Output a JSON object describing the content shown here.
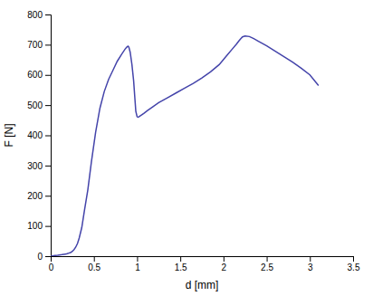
{
  "chart_data": {
    "type": "line",
    "xlabel": "d [mm]",
    "ylabel": "F [N]",
    "xlim": [
      0,
      3.5
    ],
    "ylim": [
      0,
      800
    ],
    "xticks": [
      0,
      0.5,
      1,
      1.5,
      2,
      2.5,
      3,
      3.5
    ],
    "yticks": [
      0,
      100,
      200,
      300,
      400,
      500,
      600,
      700,
      800
    ],
    "grid": false,
    "color": "#4444aa",
    "x": [
      0.0,
      0.02,
      0.05,
      0.08,
      0.1,
      0.13,
      0.15,
      0.17,
      0.19,
      0.21,
      0.23,
      0.25,
      0.27,
      0.29,
      0.31,
      0.33,
      0.36,
      0.39,
      0.43,
      0.47,
      0.52,
      0.57,
      0.62,
      0.67,
      0.72,
      0.77,
      0.82,
      0.86,
      0.88,
      0.895,
      0.905,
      0.92,
      0.94,
      0.96,
      0.975,
      0.985,
      1.0,
      1.01,
      1.02,
      1.03,
      1.05,
      1.08,
      1.12,
      1.18,
      1.25,
      1.35,
      1.45,
      1.55,
      1.65,
      1.75,
      1.85,
      1.95,
      2.0,
      2.05,
      2.1,
      2.15,
      2.18,
      2.2,
      2.22,
      2.25,
      2.3,
      2.35,
      2.4,
      2.5,
      2.6,
      2.7,
      2.8,
      2.9,
      3.0,
      3.1
    ],
    "values": [
      0,
      1,
      2,
      3,
      4,
      5,
      6,
      7,
      8,
      10,
      12,
      16,
      22,
      30,
      42,
      60,
      95,
      150,
      220,
      310,
      410,
      490,
      545,
      585,
      615,
      645,
      668,
      685,
      692,
      695,
      692,
      675,
      635,
      580,
      520,
      480,
      462,
      460,
      461,
      463,
      467,
      473,
      482,
      494,
      508,
      524,
      540,
      556,
      572,
      590,
      610,
      634,
      651,
      668,
      685,
      702,
      713,
      720,
      726,
      729,
      727,
      720,
      712,
      696,
      678,
      660,
      642,
      622,
      600,
      565
    ]
  }
}
